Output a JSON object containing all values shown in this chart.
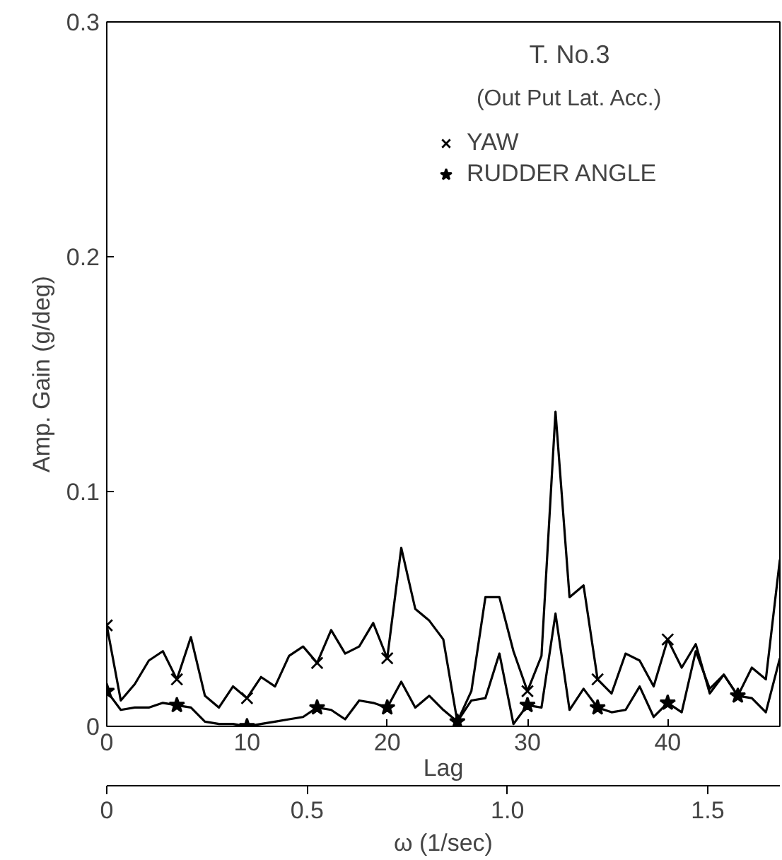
{
  "chart_data": {
    "type": "line",
    "title": "T. No.3",
    "subtitle": "(Out Put Lat. Acc.)",
    "xlabel": "Lag",
    "x2label": "ω (1/sec)",
    "ylabel": "Amp. Gain (g/deg)",
    "xlim": [
      0,
      48
    ],
    "xticks": [
      0,
      10,
      20,
      30,
      40
    ],
    "x2lim": [
      0,
      1.68
    ],
    "x2ticks": [
      0,
      0.5,
      {
        "value": 1,
        "label": "1.0"
      },
      1.5
    ],
    "ylim": [
      0,
      0.3
    ],
    "yticks": [
      0,
      0.1,
      0.2,
      0.3
    ],
    "grid": false,
    "legend": "top",
    "line_style": "solid",
    "marker": "none",
    "series": [
      {
        "color": "#000000",
        "x": [
          0,
          1,
          2,
          3,
          4,
          5,
          6,
          7,
          8,
          9,
          10,
          11,
          12,
          13,
          14,
          15,
          16,
          17,
          18,
          19,
          20,
          21,
          22,
          23,
          24,
          25,
          26,
          27,
          28,
          29,
          30,
          31,
          32,
          33,
          34,
          35,
          36,
          37,
          38,
          39,
          40,
          41,
          42,
          43,
          44,
          45,
          46,
          47,
          48
        ],
        "values": [
          0.043,
          0.011,
          0.018,
          0.028,
          0.032,
          0.02,
          0.038,
          0.013,
          0.008,
          0.017,
          0.012,
          0.021,
          0.017,
          0.03,
          0.034,
          0.027,
          0.041,
          0.031,
          0.034,
          0.044,
          0.029,
          0.076,
          0.05,
          0.045,
          0.037,
          0.002,
          0.015,
          0.055,
          0.055,
          0.032,
          0.015,
          0.03,
          0.134,
          0.055,
          0.06,
          0.02,
          0.014,
          0.031,
          0.028,
          0.017,
          0.037,
          0.025,
          0.035,
          0.014,
          0.022,
          0.013,
          0.025,
          0.02,
          0.071
        ]
      },
      {
        "color": "#000000",
        "x": [
          0,
          1,
          2,
          3,
          4,
          5,
          6,
          7,
          8,
          9,
          10,
          11,
          12,
          13,
          14,
          15,
          16,
          17,
          18,
          19,
          20,
          21,
          22,
          23,
          24,
          25,
          26,
          27,
          28,
          29,
          30,
          31,
          32,
          33,
          34,
          35,
          36,
          37,
          38,
          39,
          40,
          41,
          42,
          43,
          44,
          45,
          46,
          47,
          48
        ],
        "values": [
          0.015,
          0.007,
          0.008,
          0.008,
          0.01,
          0.009,
          0.008,
          0.002,
          0.001,
          0.001,
          0,
          0.001,
          0.002,
          0.003,
          0.004,
          0.008,
          0.007,
          0.003,
          0.011,
          0.01,
          0.008,
          0.019,
          0.008,
          0.013,
          0.007,
          0.002,
          0.011,
          0.012,
          0.031,
          0.001,
          0.009,
          0.008,
          0.048,
          0.007,
          0.016,
          0.008,
          0.006,
          0.007,
          0.017,
          0.004,
          0.01,
          0.006,
          0.032,
          0.016,
          0.022,
          0.013,
          0.012,
          0.006,
          0.029
        ]
      },
      {
        "type": "scatter",
        "name": "YAW",
        "marker": "cross",
        "color": "#000000",
        "x": [
          0,
          5,
          10,
          15,
          20,
          30,
          35,
          40
        ],
        "values": [
          0.043,
          0.02,
          0.012,
          0.027,
          0.029,
          0.015,
          0.02,
          0.037
        ]
      },
      {
        "type": "scatter",
        "name": "RUDDER ANGLE",
        "marker": "star",
        "color": "#000000",
        "x": [
          0,
          5,
          10,
          15,
          20,
          25,
          30,
          35,
          40,
          45
        ],
        "values": [
          0.015,
          0.009,
          0,
          0.008,
          0.008,
          0.002,
          0.009,
          0.008,
          0.01,
          0.013
        ]
      }
    ]
  }
}
